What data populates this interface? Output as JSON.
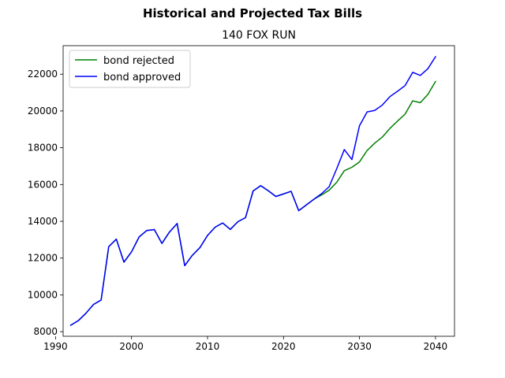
{
  "chart_data": {
    "type": "line",
    "suptitle": "Historical and Projected Tax Bills",
    "title": "140 FOX RUN",
    "xlabel": "",
    "ylabel": "",
    "xlim": [
      1991,
      2042.5
    ],
    "ylim": [
      7750,
      23550
    ],
    "xticks": [
      1990,
      2000,
      2010,
      2020,
      2030,
      2040
    ],
    "yticks": [
      8000,
      10000,
      12000,
      14000,
      16000,
      18000,
      20000,
      22000
    ],
    "grid": false,
    "legend_position": "upper-left",
    "series": [
      {
        "name": "bond rejected",
        "color": "#008000",
        "x": [
          1992,
          1993,
          1994,
          1995,
          1996,
          1997,
          1998,
          1999,
          2000,
          2001,
          2002,
          2003,
          2004,
          2005,
          2006,
          2007,
          2008,
          2009,
          2010,
          2011,
          2012,
          2013,
          2014,
          2015,
          2016,
          2017,
          2018,
          2019,
          2020,
          2021,
          2022,
          2023,
          2024,
          2025,
          2026,
          2027,
          2028,
          2029,
          2030,
          2031,
          2032,
          2033,
          2034,
          2035,
          2036,
          2037,
          2038,
          2039,
          2040
        ],
        "values": [
          8350,
          8600,
          9000,
          9480,
          9720,
          12620,
          13030,
          11780,
          12340,
          13150,
          13500,
          13550,
          12800,
          13420,
          13880,
          11590,
          12150,
          12570,
          13230,
          13680,
          13910,
          13560,
          13980,
          14200,
          15650,
          15940,
          15660,
          15350,
          15490,
          15630,
          14580,
          14890,
          15200,
          15430,
          15690,
          16120,
          16750,
          16940,
          17230,
          17850,
          18250,
          18580,
          19050,
          19450,
          19830,
          20550,
          20450,
          20900,
          21600
        ]
      },
      {
        "name": "bond approved",
        "color": "#0000ff",
        "x": [
          1992,
          1993,
          1994,
          1995,
          1996,
          1997,
          1998,
          1999,
          2000,
          2001,
          2002,
          2003,
          2004,
          2005,
          2006,
          2007,
          2008,
          2009,
          2010,
          2011,
          2012,
          2013,
          2014,
          2015,
          2016,
          2017,
          2018,
          2019,
          2020,
          2021,
          2022,
          2023,
          2024,
          2025,
          2026,
          2027,
          2028,
          2029,
          2030,
          2031,
          2032,
          2033,
          2034,
          2035,
          2036,
          2037,
          2038,
          2039,
          2040
        ],
        "values": [
          8350,
          8600,
          9000,
          9480,
          9720,
          12620,
          13030,
          11780,
          12340,
          13150,
          13500,
          13550,
          12800,
          13420,
          13880,
          11590,
          12150,
          12570,
          13230,
          13680,
          13910,
          13560,
          13980,
          14200,
          15650,
          15940,
          15660,
          15350,
          15490,
          15630,
          14580,
          14890,
          15200,
          15500,
          15880,
          16860,
          17900,
          17360,
          19200,
          19950,
          20030,
          20320,
          20780,
          21070,
          21380,
          22100,
          21930,
          22300,
          22950
        ]
      }
    ]
  }
}
